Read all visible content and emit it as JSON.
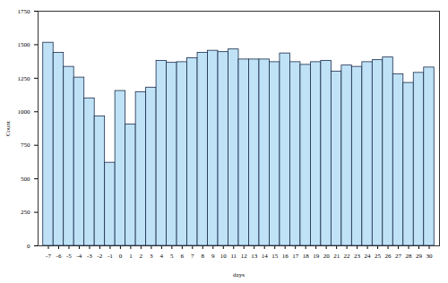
{
  "chart_data": {
    "type": "histogram",
    "x_label": "days",
    "y_label": "Count",
    "bins": [
      -7.5,
      -6.5,
      -5.5,
      -4.5,
      -3.5,
      -2.5,
      -1.5,
      -0.5,
      0.5,
      1.5,
      2.5,
      3.5,
      4.5,
      5.5,
      6.5,
      7.5,
      8.5,
      9.5,
      10.5,
      11.5,
      12.5,
      13.5,
      14.5,
      15.5,
      16.5,
      17.5,
      18.5,
      19.5,
      20.5,
      21.5,
      22.5,
      23.5,
      24.5,
      25.5,
      26.5,
      27.5,
      28.5,
      29.5,
      30.5
    ],
    "values": [
      1515,
      1440,
      1335,
      1255,
      1100,
      965,
      620,
      1155,
      905,
      1145,
      1180,
      1380,
      1365,
      1370,
      1400,
      1440,
      1455,
      1445,
      1465,
      1390,
      1390,
      1390,
      1370,
      1435,
      1370,
      1350,
      1370,
      1380,
      1300,
      1345,
      1335,
      1370,
      1385,
      1405,
      1280,
      1215,
      1290,
      1330
    ],
    "color": "#bfe2f7",
    "xlim": [
      -8,
      31
    ],
    "xticks": [
      -7,
      -6,
      -5,
      -4,
      -3,
      -2,
      -1,
      0,
      1,
      2,
      3,
      4,
      5,
      6,
      7,
      8,
      9,
      10,
      11,
      12,
      13,
      14,
      15,
      16,
      17,
      18,
      19,
      20,
      21,
      22,
      23,
      24,
      25,
      26,
      27,
      28,
      29,
      30
    ],
    "ylim": [
      0,
      1750
    ],
    "yticks": [
      0,
      250,
      500,
      750,
      1000,
      1250,
      1500,
      1750
    ],
    "grid": false
  }
}
